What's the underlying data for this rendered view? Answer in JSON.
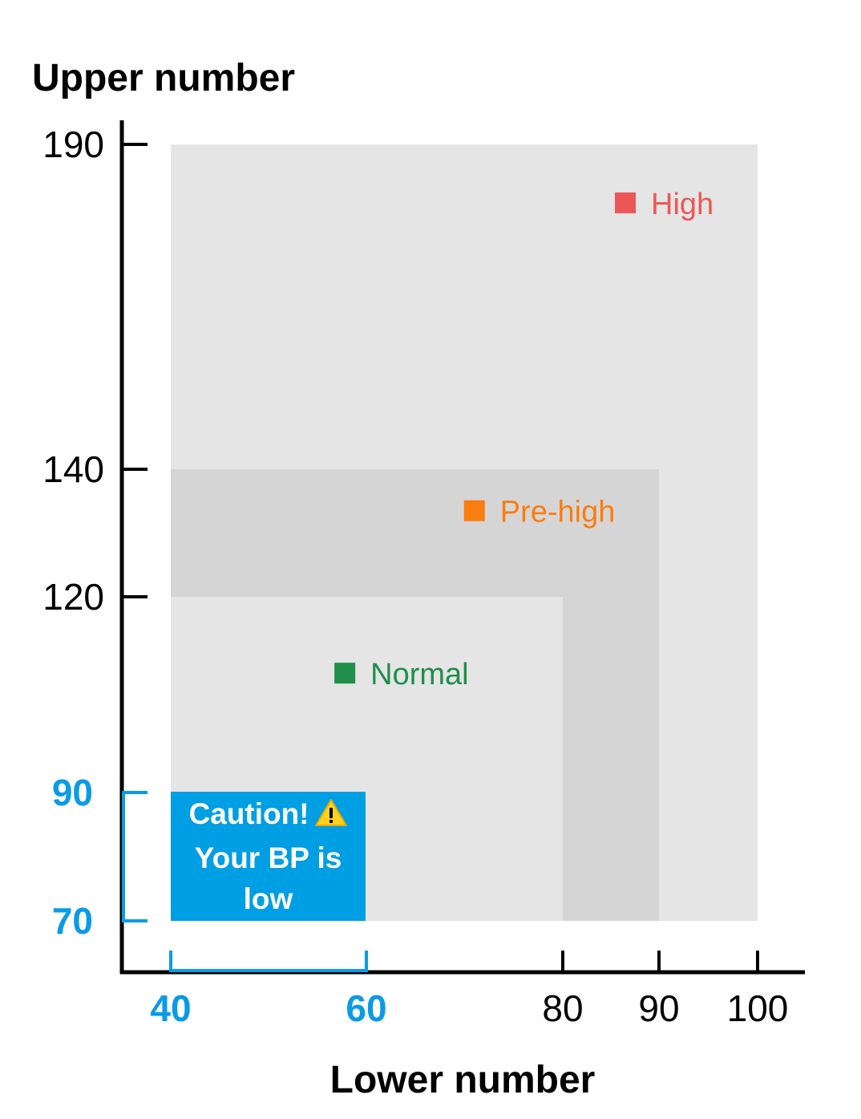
{
  "chart_data": {
    "type": "area",
    "title": "",
    "ylabel": "Upper number",
    "xlabel": "Lower number",
    "x_ticks": [
      40,
      60,
      80,
      90,
      100
    ],
    "y_ticks": [
      70,
      90,
      120,
      140,
      190
    ],
    "highlighted_x_ticks": [
      40,
      60
    ],
    "highlighted_y_ticks": [
      70,
      90
    ],
    "xlim": [
      40,
      100
    ],
    "ylim": [
      70,
      190
    ],
    "zones": [
      {
        "name": "High",
        "x": [
          40,
          100
        ],
        "y": [
          70,
          190
        ],
        "fill": "#e5e5e5",
        "marker_color": "#eb5757",
        "label_color": "#eb5757"
      },
      {
        "name": "Pre-high",
        "x": [
          40,
          90
        ],
        "y": [
          70,
          140
        ],
        "fill": "#d6d5d6",
        "marker_color": "#fa7d0f",
        "label_color": "#fa7d0f"
      },
      {
        "name": "Normal",
        "x": [
          40,
          80
        ],
        "y": [
          70,
          120
        ],
        "fill": "#e5e5e5",
        "marker_color": "#1f8f4a",
        "label_color": "#1f8f4a"
      }
    ],
    "low_zone": {
      "x": [
        40,
        60
      ],
      "y": [
        70,
        90
      ],
      "fill": "#009ee3",
      "line1": "Caution!",
      "line2": "Your BP is",
      "line3": "low",
      "icon": "warning-icon"
    },
    "grid": false,
    "highlight_color": "#0a9be6"
  }
}
